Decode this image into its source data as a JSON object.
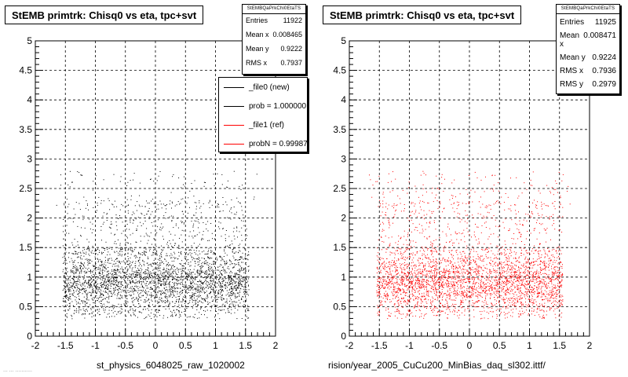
{
  "footer_text": "...  ...  ...........",
  "chart_data": [
    {
      "type": "scatter",
      "title": "StEMB primtrk: Chisq0 vs eta, tpc+svt",
      "xlabel": "st_physics_6048025_raw_1020002",
      "ylabel": "",
      "xlim": [
        -2,
        2
      ],
      "ylim": [
        0,
        5
      ],
      "grid": true,
      "x_ticks": [
        "-2",
        "-1.5",
        "-1",
        "-0.5",
        "0",
        "0.5",
        "1",
        "1.5",
        "2"
      ],
      "y_ticks": [
        "0",
        "0.5",
        "1",
        "1.5",
        "2",
        "2.5",
        "3",
        "3.5",
        "4",
        "4.5",
        "5"
      ],
      "marker_color": "#000000",
      "stats": {
        "name": "StEMBQaPrkChi0EtaTS",
        "rows": [
          {
            "label": "Entries",
            "value": "11922"
          },
          {
            "label": "Mean x",
            "value": "0.008465"
          },
          {
            "label": "Mean y",
            "value": "0.9222"
          },
          {
            "label": "RMS x",
            "value": "0.7937"
          }
        ]
      },
      "legend": {
        "placement": "top-right",
        "entries": [
          {
            "label": "_file0 (new)",
            "color": "#000000"
          },
          {
            "label": "prob = 1.000000",
            "color": "#000000"
          },
          {
            "label": "_file1 (ref)",
            "color": "#ff0000"
          },
          {
            "label": "probN = 0.99987",
            "color": "#ff0000"
          }
        ]
      },
      "distribution": {
        "entries": 11922,
        "mean_x": 0.008465,
        "mean_y": 0.9222,
        "rms_x": 0.7937,
        "rms_y": 0.2979,
        "x_range": [
          -1.55,
          1.55
        ],
        "core_y_range": [
          0.3,
          1.5
        ]
      }
    },
    {
      "type": "scatter",
      "title": "StEMB primtrk: Chisq0 vs eta, tpc+svt",
      "xlabel": "rision/year_2005_CuCu200_MinBias_daq_sl302.ittf/",
      "ylabel": "",
      "xlim": [
        -2,
        2
      ],
      "ylim": [
        0,
        5
      ],
      "grid": true,
      "x_ticks": [
        "-2",
        "-1.5",
        "-1",
        "-0.5",
        "0",
        "0.5",
        "1",
        "1.5",
        "2"
      ],
      "y_ticks": [
        "0",
        "0.5",
        "1",
        "1.5",
        "2",
        "2.5",
        "3",
        "3.5",
        "4",
        "4.5",
        "5"
      ],
      "marker_color": "#ff0000",
      "stats": {
        "name": "StEMBQaPrkChi0EtaTS",
        "rows": [
          {
            "label": "Entries",
            "value": "11925"
          },
          {
            "label": "Mean x",
            "value": "0.008471"
          },
          {
            "label": "Mean y",
            "value": "0.9224"
          },
          {
            "label": "RMS x",
            "value": "0.7936"
          },
          {
            "label": "RMS y",
            "value": "0.2979"
          }
        ]
      },
      "legend": null,
      "distribution": {
        "entries": 11925,
        "mean_x": 0.008471,
        "mean_y": 0.9224,
        "rms_x": 0.7936,
        "rms_y": 0.2979,
        "x_range": [
          -1.55,
          1.55
        ],
        "core_y_range": [
          0.3,
          1.5
        ]
      }
    }
  ]
}
